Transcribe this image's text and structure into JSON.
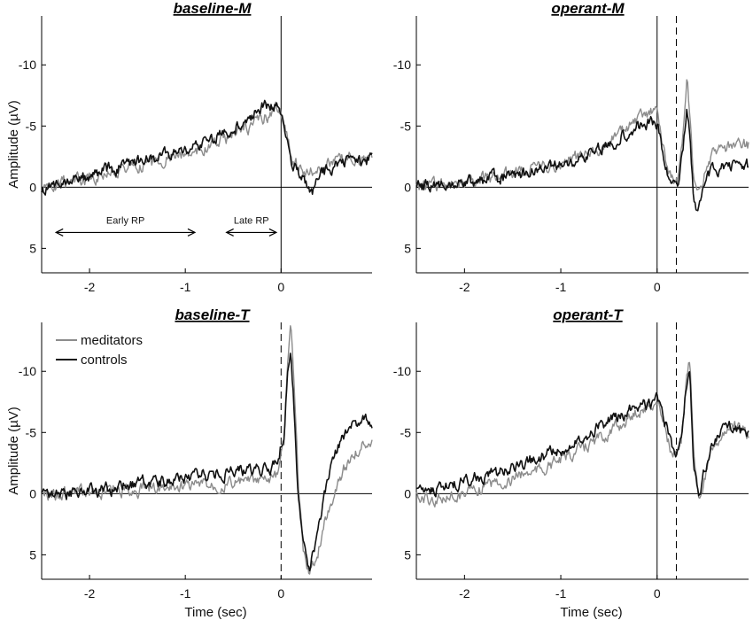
{
  "chart_data": [
    {
      "type": "line",
      "title": "baseline-M",
      "ylabel": "Amplitude (µV)",
      "xlabel": "",
      "xlim": [
        -2.5,
        0.95
      ],
      "ylim": [
        7,
        -14
      ],
      "y_inverted": true,
      "xticks": [
        -2,
        -1,
        0
      ],
      "yticks": [
        -10,
        -5,
        0,
        5
      ],
      "vlines": [
        {
          "x": 0,
          "style": "solid"
        }
      ],
      "annotations": [
        {
          "text": "Early RP",
          "x_range": [
            -2.35,
            -0.9
          ],
          "y": 3.7
        },
        {
          "text": "Late RP",
          "x_range": [
            -0.57,
            -0.05
          ],
          "y": 3.7
        }
      ],
      "series": [
        {
          "name": "meditators",
          "color": "#8c8c8c",
          "x": [
            -2.5,
            -2.3,
            -2.0,
            -1.8,
            -1.5,
            -1.2,
            -1.0,
            -0.8,
            -0.6,
            -0.4,
            -0.2,
            -0.05,
            0.0,
            0.05,
            0.12,
            0.2,
            0.28,
            0.35,
            0.45,
            0.6,
            0.75,
            0.95
          ],
          "y": [
            0.5,
            -0.3,
            -0.8,
            -1.2,
            -1.8,
            -2.4,
            -2.8,
            -3.1,
            -3.8,
            -4.6,
            -5.6,
            -6.4,
            -6.0,
            -4.5,
            -2.2,
            -1.5,
            -1.2,
            -1.3,
            -1.8,
            -2.3,
            -2.5,
            -2.4
          ]
        },
        {
          "name": "controls",
          "color": "#111111",
          "x": [
            -2.5,
            -2.3,
            -2.0,
            -1.8,
            -1.5,
            -1.2,
            -1.0,
            -0.8,
            -0.6,
            -0.4,
            -0.2,
            -0.05,
            0.0,
            0.05,
            0.12,
            0.2,
            0.28,
            0.33,
            0.4,
            0.5,
            0.65,
            0.8,
            0.95
          ],
          "y": [
            0.3,
            -0.4,
            -0.9,
            -1.4,
            -2.0,
            -2.6,
            -3.0,
            -3.5,
            -4.4,
            -5.4,
            -6.5,
            -6.9,
            -6.4,
            -4.0,
            -1.6,
            -1.0,
            0.1,
            0.2,
            -0.8,
            -1.5,
            -2.0,
            -2.2,
            -2.3
          ]
        }
      ]
    },
    {
      "type": "line",
      "title": "operant-M",
      "ylabel": "",
      "xlabel": "",
      "xlim": [
        -2.5,
        0.95
      ],
      "ylim": [
        7,
        -14
      ],
      "y_inverted": true,
      "xticks": [
        -2,
        -1,
        0
      ],
      "yticks": [
        -10,
        -5,
        0,
        5
      ],
      "vlines": [
        {
          "x": 0,
          "style": "solid"
        },
        {
          "x": 0.2,
          "style": "dashed"
        }
      ],
      "series": [
        {
          "name": "meditators",
          "color": "#8c8c8c",
          "x": [
            -2.5,
            -2.2,
            -2.0,
            -1.7,
            -1.5,
            -1.2,
            -1.0,
            -0.8,
            -0.6,
            -0.4,
            -0.2,
            -0.05,
            0.0,
            0.05,
            0.12,
            0.18,
            0.22,
            0.27,
            0.31,
            0.34,
            0.38,
            0.43,
            0.5,
            0.6,
            0.75,
            0.95
          ],
          "y": [
            0.0,
            -0.3,
            -0.5,
            -0.8,
            -1.1,
            -1.6,
            -2.0,
            -2.5,
            -3.2,
            -4.3,
            -5.5,
            -6.3,
            -6.3,
            -4.0,
            -1.0,
            -0.5,
            -0.8,
            -4.0,
            -8.5,
            -6.0,
            0.0,
            1.0,
            -1.5,
            -3.0,
            -3.3,
            -3.4
          ]
        },
        {
          "name": "controls",
          "color": "#111111",
          "x": [
            -2.5,
            -2.2,
            -2.0,
            -1.7,
            -1.5,
            -1.2,
            -1.0,
            -0.8,
            -0.6,
            -0.4,
            -0.2,
            -0.05,
            0.0,
            0.05,
            0.12,
            0.18,
            0.22,
            0.27,
            0.31,
            0.34,
            0.38,
            0.43,
            0.5,
            0.6,
            0.75,
            0.95
          ],
          "y": [
            0.0,
            -0.3,
            -0.4,
            -0.7,
            -0.9,
            -1.4,
            -1.8,
            -2.3,
            -3.0,
            -4.0,
            -5.0,
            -5.4,
            -5.3,
            -3.0,
            -0.5,
            -0.2,
            -0.4,
            -3.0,
            -6.8,
            -4.0,
            1.0,
            2.0,
            -0.5,
            -1.5,
            -1.8,
            -1.7
          ]
        }
      ]
    },
    {
      "type": "line",
      "title": "baseline-T",
      "ylabel": "Amplitude (µV)",
      "xlabel": "Time (sec)",
      "xlim": [
        -2.5,
        0.95
      ],
      "ylim": [
        7,
        -14
      ],
      "y_inverted": true,
      "xticks": [
        -2,
        -1,
        0
      ],
      "yticks": [
        -10,
        -5,
        0,
        5
      ],
      "vlines": [
        {
          "x": 0,
          "style": "dashed"
        }
      ],
      "series": [
        {
          "name": "meditators",
          "color": "#8c8c8c",
          "x": [
            -2.5,
            -2.2,
            -2.0,
            -1.7,
            -1.5,
            -1.2,
            -1.0,
            -0.7,
            -0.5,
            -0.2,
            -0.05,
            0.03,
            0.07,
            0.1,
            0.13,
            0.18,
            0.23,
            0.3,
            0.38,
            0.45,
            0.55,
            0.65,
            0.75,
            0.85,
            0.95
          ],
          "y": [
            0.0,
            0.0,
            -0.1,
            -0.2,
            -0.3,
            -0.5,
            -0.7,
            -0.8,
            -0.9,
            -1.0,
            -1.2,
            -4.0,
            -11.0,
            -13.5,
            -10.0,
            -1.0,
            4.5,
            6.5,
            5.0,
            2.5,
            0.0,
            -2.0,
            -3.2,
            -4.0,
            -4.5
          ]
        },
        {
          "name": "controls",
          "color": "#111111",
          "x": [
            -2.5,
            -2.2,
            -2.0,
            -1.7,
            -1.5,
            -1.2,
            -1.0,
            -0.7,
            -0.5,
            -0.2,
            -0.05,
            0.03,
            0.07,
            0.1,
            0.13,
            0.18,
            0.23,
            0.3,
            0.38,
            0.45,
            0.55,
            0.65,
            0.75,
            0.85,
            0.95
          ],
          "y": [
            0.0,
            -0.1,
            -0.3,
            -0.5,
            -0.8,
            -1.1,
            -1.3,
            -1.6,
            -1.8,
            -2.0,
            -2.2,
            -5.0,
            -10.0,
            -12.0,
            -8.0,
            0.5,
            4.5,
            6.0,
            3.5,
            0.0,
            -3.0,
            -4.8,
            -5.4,
            -6.3,
            -5.8
          ]
        }
      ]
    },
    {
      "type": "line",
      "title": "operant-T",
      "ylabel": "",
      "xlabel": "Time (sec)",
      "xlim": [
        -2.5,
        0.95
      ],
      "ylim": [
        7,
        -14
      ],
      "y_inverted": true,
      "xticks": [
        -2,
        -1,
        0
      ],
      "yticks": [
        -10,
        -5,
        0,
        5
      ],
      "vlines": [
        {
          "x": 0,
          "style": "solid"
        },
        {
          "x": 0.2,
          "style": "dashed"
        }
      ],
      "series": [
        {
          "name": "meditators",
          "color": "#8c8c8c",
          "x": [
            -2.5,
            -2.2,
            -2.0,
            -1.7,
            -1.5,
            -1.2,
            -1.0,
            -0.8,
            -0.6,
            -0.4,
            -0.2,
            -0.05,
            0.0,
            0.05,
            0.1,
            0.15,
            0.2,
            0.25,
            0.3,
            0.34,
            0.38,
            0.43,
            0.48,
            0.55,
            0.65,
            0.75,
            0.85,
            0.95
          ],
          "y": [
            0.3,
            0.5,
            0.0,
            -0.8,
            -1.3,
            -2.0,
            -2.8,
            -3.6,
            -4.5,
            -5.5,
            -6.8,
            -7.3,
            -7.5,
            -6.5,
            -5.0,
            -3.2,
            -3.0,
            -4.0,
            -9.0,
            -11.2,
            -4.0,
            0.2,
            -1.0,
            -3.0,
            -4.6,
            -5.6,
            -5.3,
            -4.6
          ]
        },
        {
          "name": "controls",
          "color": "#111111",
          "x": [
            -2.5,
            -2.2,
            -2.0,
            -1.7,
            -1.5,
            -1.2,
            -1.0,
            -0.8,
            -0.6,
            -0.4,
            -0.2,
            -0.05,
            0.0,
            0.05,
            0.1,
            0.15,
            0.2,
            0.25,
            0.3,
            0.34,
            0.38,
            0.43,
            0.48,
            0.55,
            0.65,
            0.75,
            0.85,
            0.95
          ],
          "y": [
            -0.2,
            -0.6,
            -1.0,
            -1.6,
            -2.2,
            -3.0,
            -3.7,
            -4.6,
            -5.5,
            -6.4,
            -7.2,
            -7.5,
            -7.6,
            -6.8,
            -5.5,
            -3.6,
            -3.3,
            -4.5,
            -8.5,
            -10.2,
            -2.0,
            0.6,
            -1.5,
            -3.5,
            -4.8,
            -5.5,
            -5.2,
            -4.7
          ]
        }
      ]
    }
  ],
  "legend": {
    "placement": "top-left of baseline-T panel",
    "items": [
      {
        "label": "meditators",
        "color": "#8c8c8c"
      },
      {
        "label": "controls",
        "color": "#111111"
      }
    ]
  }
}
